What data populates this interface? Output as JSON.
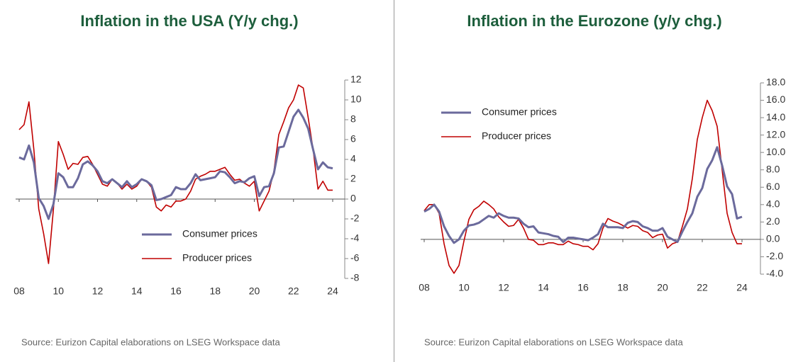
{
  "chart_data": [
    {
      "type": "line",
      "title": "Inflation in the USA (Y/y chg.)",
      "source": "Source: Eurizon Capital elaborations on LSEG Workspace data",
      "legend": "lower center",
      "x": [
        8,
        8.25,
        8.5,
        8.75,
        9,
        9.25,
        9.5,
        9.75,
        10,
        10.25,
        10.5,
        10.75,
        11,
        11.25,
        11.5,
        11.75,
        12,
        12.25,
        12.5,
        12.75,
        13,
        13.25,
        13.5,
        13.75,
        14,
        14.25,
        14.5,
        14.75,
        15,
        15.25,
        15.5,
        15.75,
        16,
        16.25,
        16.5,
        16.75,
        17,
        17.25,
        17.5,
        17.75,
        18,
        18.25,
        18.5,
        18.75,
        19,
        19.25,
        19.5,
        19.75,
        20,
        20.25,
        20.5,
        20.75,
        21,
        21.25,
        21.5,
        21.75,
        22,
        22.25,
        22.5,
        22.75,
        23,
        23.25,
        23.5,
        23.75,
        24
      ],
      "xlim": [
        8,
        24
      ],
      "xticks": [
        {
          "value": 8,
          "label": "08"
        },
        10,
        12,
        14,
        16,
        18,
        20,
        22,
        24
      ],
      "ylim": [
        -8,
        12
      ],
      "yticks": [
        -8,
        -6,
        -4,
        -2,
        0,
        2,
        4,
        6,
        8,
        10,
        12
      ],
      "series": [
        {
          "name": "Consumer prices",
          "color": "#6b6a9c",
          "values": [
            4.2,
            4.0,
            5.4,
            3.7,
            0.1,
            -0.7,
            -2.0,
            -0.5,
            2.6,
            2.2,
            1.2,
            1.2,
            2.1,
            3.5,
            3.8,
            3.4,
            2.8,
            1.8,
            1.6,
            2.0,
            1.6,
            1.2,
            1.8,
            1.2,
            1.5,
            2.0,
            1.8,
            1.4,
            -0.1,
            0.0,
            0.2,
            0.4,
            1.2,
            1.0,
            1.0,
            1.6,
            2.5,
            1.9,
            2.0,
            2.1,
            2.2,
            2.8,
            2.7,
            2.2,
            1.6,
            1.8,
            1.7,
            2.1,
            2.3,
            0.3,
            1.2,
            1.3,
            2.6,
            5.2,
            5.3,
            6.8,
            8.3,
            9.0,
            8.2,
            7.1,
            5.0,
            3.0,
            3.7,
            3.2,
            3.1
          ]
        },
        {
          "name": "Producer prices",
          "color": "#c00000",
          "values": [
            7.0,
            7.5,
            9.8,
            5.0,
            -1.0,
            -3.5,
            -6.5,
            -1.0,
            5.8,
            4.5,
            3.0,
            3.6,
            3.5,
            4.2,
            4.3,
            3.5,
            2.5,
            1.5,
            1.3,
            2.0,
            1.6,
            1.0,
            1.5,
            1.0,
            1.3,
            2.0,
            1.8,
            1.2,
            -0.8,
            -1.2,
            -0.6,
            -0.8,
            -0.2,
            -0.2,
            0.0,
            0.8,
            2.0,
            2.3,
            2.5,
            2.8,
            2.8,
            3.0,
            3.2,
            2.5,
            1.9,
            2.0,
            1.6,
            1.3,
            1.8,
            -1.2,
            -0.2,
            0.8,
            2.8,
            6.5,
            7.8,
            9.2,
            10.0,
            11.5,
            11.2,
            8.2,
            5.0,
            1.0,
            1.8,
            0.9,
            0.9
          ]
        }
      ]
    },
    {
      "type": "line",
      "title": "Inflation in the Eurozone (y/y chg.)",
      "source": "Source: Eurizon Capital elaborations on LSEG Workspace data",
      "legend": "upper left",
      "x": [
        8,
        8.25,
        8.5,
        8.75,
        9,
        9.25,
        9.5,
        9.75,
        10,
        10.25,
        10.5,
        10.75,
        11,
        11.25,
        11.5,
        11.75,
        12,
        12.25,
        12.5,
        12.75,
        13,
        13.25,
        13.5,
        13.75,
        14,
        14.25,
        14.5,
        14.75,
        15,
        15.25,
        15.5,
        15.75,
        16,
        16.25,
        16.5,
        16.75,
        17,
        17.25,
        17.5,
        17.75,
        18,
        18.25,
        18.5,
        18.75,
        19,
        19.25,
        19.5,
        19.75,
        20,
        20.25,
        20.5,
        20.75,
        21,
        21.25,
        21.5,
        21.75,
        22,
        22.25,
        22.5,
        22.75,
        23,
        23.25,
        23.5,
        23.75,
        24
      ],
      "xlim": [
        8,
        24
      ],
      "xticks": [
        {
          "value": 8,
          "label": "08"
        },
        10,
        12,
        14,
        16,
        18,
        20,
        22,
        24
      ],
      "ylim": [
        -4,
        18
      ],
      "yticks": [
        {
          "value": -4,
          "label": "-4.0"
        },
        {
          "value": -2,
          "label": "-2.0"
        },
        {
          "value": 0,
          "label": "0.0"
        },
        {
          "value": 2,
          "label": "2.0"
        },
        {
          "value": 4,
          "label": "4.0"
        },
        {
          "value": 6,
          "label": "6.0"
        },
        {
          "value": 8,
          "label": "8.0"
        },
        {
          "value": 10,
          "label": "10.0"
        },
        {
          "value": 12,
          "label": "12.0"
        },
        {
          "value": 14,
          "label": "14.0"
        },
        {
          "value": 16,
          "label": "16.0"
        },
        {
          "value": 18,
          "label": "18.0"
        }
      ],
      "series": [
        {
          "name": "Consumer prices",
          "color": "#6b6a9c",
          "values": [
            3.2,
            3.5,
            4.0,
            3.2,
            1.5,
            0.4,
            -0.4,
            0.0,
            1.0,
            1.6,
            1.7,
            1.9,
            2.3,
            2.7,
            2.5,
            3.0,
            2.7,
            2.5,
            2.5,
            2.4,
            1.8,
            1.4,
            1.5,
            0.8,
            0.7,
            0.6,
            0.4,
            0.3,
            -0.3,
            0.2,
            0.2,
            0.1,
            0.0,
            -0.1,
            0.2,
            0.6,
            1.8,
            1.4,
            1.4,
            1.4,
            1.3,
            1.9,
            2.1,
            2.0,
            1.5,
            1.3,
            1.0,
            1.0,
            1.3,
            0.3,
            0.0,
            -0.3,
            0.9,
            2.0,
            3.0,
            4.9,
            5.9,
            8.1,
            9.1,
            10.6,
            8.5,
            6.1,
            5.2,
            2.4,
            2.6
          ]
        },
        {
          "name": "Producer prices",
          "color": "#c00000",
          "values": [
            3.3,
            4.0,
            4.0,
            3.0,
            -0.5,
            -3.0,
            -3.9,
            -3.0,
            -0.2,
            2.3,
            3.4,
            3.8,
            4.4,
            4.0,
            3.5,
            2.6,
            2.0,
            1.5,
            1.6,
            2.3,
            1.3,
            0.0,
            -0.1,
            -0.6,
            -0.6,
            -0.4,
            -0.4,
            -0.6,
            -0.6,
            -0.2,
            -0.5,
            -0.6,
            -0.8,
            -0.8,
            -1.2,
            -0.5,
            1.3,
            2.4,
            2.1,
            1.9,
            1.6,
            1.3,
            1.6,
            1.5,
            1.0,
            0.8,
            0.2,
            0.5,
            0.6,
            -1.0,
            -0.5,
            -0.3,
            1.5,
            3.5,
            7.0,
            11.5,
            14.0,
            16.0,
            14.8,
            13.0,
            8.0,
            3.0,
            0.8,
            -0.5,
            -0.5
          ]
        }
      ]
    }
  ]
}
